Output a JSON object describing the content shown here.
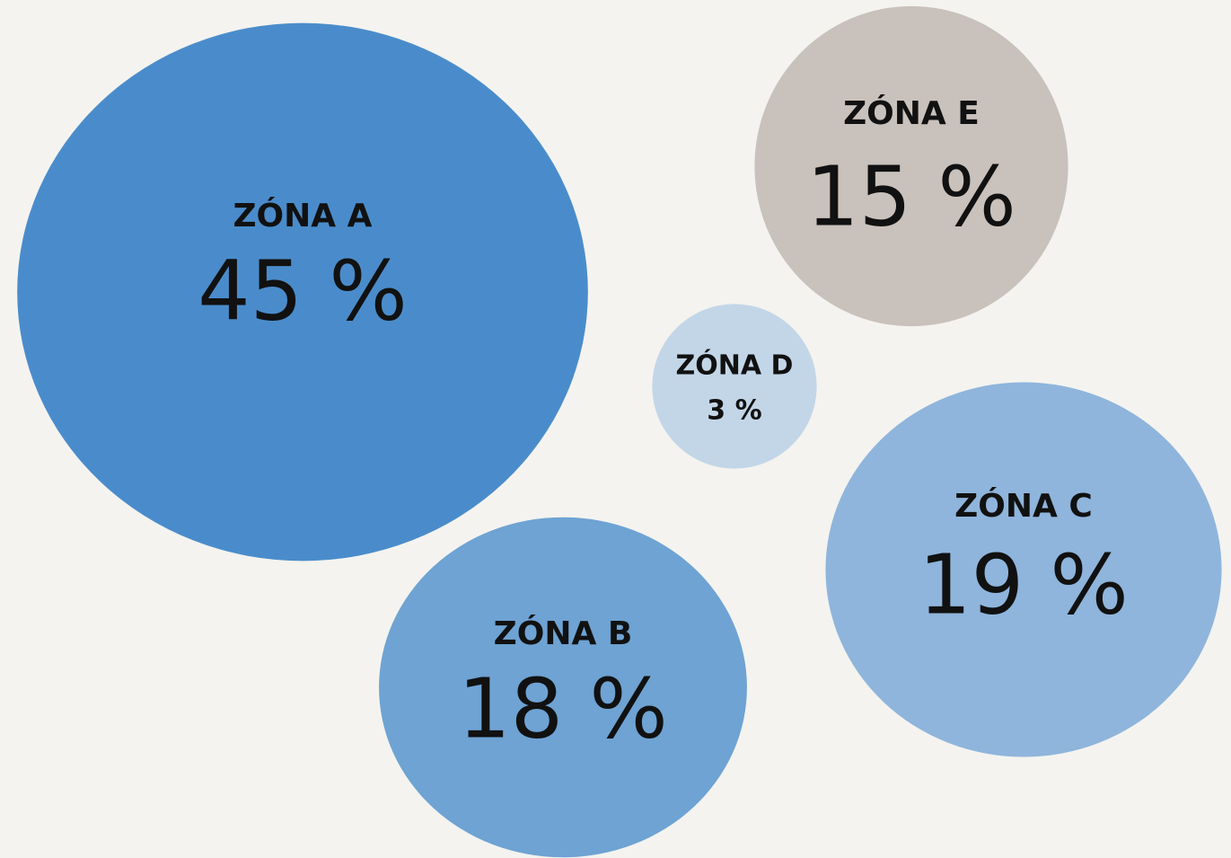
{
  "chart_data": {
    "type": "bubble",
    "categories": [
      "ZÓNA A",
      "ZÓNA B",
      "ZÓNA C",
      "ZÓNA D",
      "ZÓNA E"
    ],
    "values": [
      45,
      18,
      19,
      3,
      15
    ],
    "value_labels": [
      "45 %",
      "18 %",
      "19 %",
      "3 %",
      "15 %"
    ],
    "colors": [
      "#4a8ccb",
      "#6ea3d3",
      "#8fb5dc",
      "#c3d6e8",
      "#c9c1bb"
    ]
  }
}
